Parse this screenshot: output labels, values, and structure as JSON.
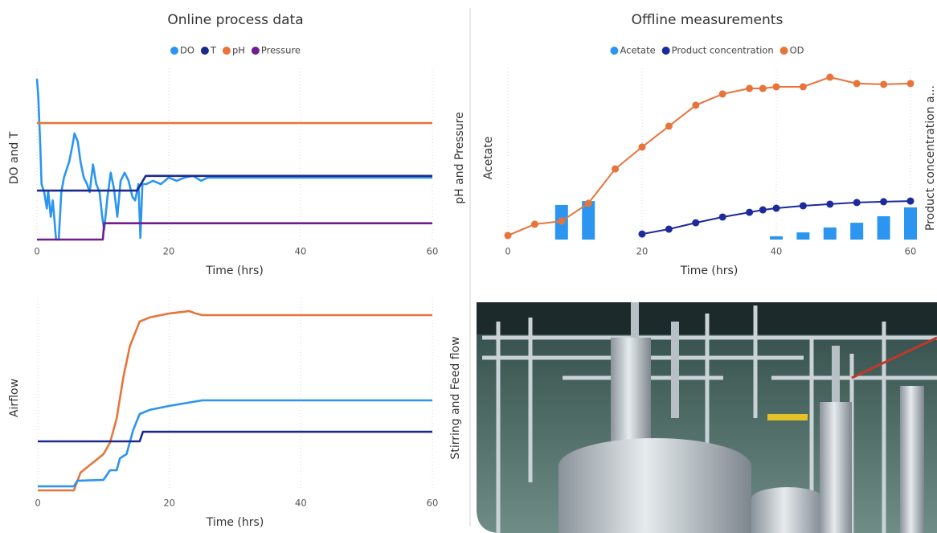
{
  "chart_data": [
    {
      "type": "line",
      "title": "Online process data",
      "xlabel": "Time (hrs)",
      "ylabel": "DO and T",
      "y2label": "pH and Pressure",
      "xlim": [
        0,
        60
      ],
      "xticks": [
        0,
        20,
        40,
        60
      ],
      "ylim": [
        0,
        100
      ],
      "y2lim": [
        0,
        100
      ],
      "grid": true,
      "legend": "top",
      "series": [
        {
          "name": "DO",
          "color": "#2b95f0",
          "axis": "y",
          "x": [
            0,
            0.2,
            0.5,
            0.7,
            1.1,
            1.5,
            1.7,
            2.1,
            2.4,
            2.9,
            3.3,
            3.7,
            4.1,
            4.9,
            5.4,
            5.7,
            6.2,
            6.6,
            7.1,
            7.6,
            8.0,
            8.5,
            9.0,
            9.5,
            9.9,
            10.2,
            10.7,
            11.2,
            11.7,
            12.2,
            12.7,
            13.3,
            13.9,
            14.5,
            14.9,
            15.4,
            15.7,
            16.0,
            16.6,
            17.6,
            18.8,
            20.0,
            21.2,
            22.4,
            23.7,
            24.9,
            25.9,
            60
          ],
          "values": [
            98.5,
            88,
            58,
            34,
            29,
            19,
            30,
            14,
            24,
            0,
            0,
            29,
            38,
            48,
            58,
            65,
            60,
            48,
            38,
            34,
            29,
            46,
            34,
            29,
            14,
            6,
            26,
            41,
            31,
            14,
            36,
            41,
            36,
            26,
            24,
            34,
            1,
            34,
            34,
            36,
            34,
            38,
            36,
            38,
            39,
            36,
            38,
            38
          ]
        },
        {
          "name": "T",
          "color": "#1c2a8c",
          "axis": "y",
          "x": [
            0,
            15.2,
            16.5,
            60
          ],
          "values": [
            30,
            30,
            39,
            39
          ]
        },
        {
          "name": "pH",
          "color": "#e8743b",
          "axis": "y2",
          "x": [
            0,
            60
          ],
          "values": [
            71.4,
            71.4
          ]
        },
        {
          "name": "Pressure",
          "color": "#6f1d8f",
          "axis": "y2",
          "x": [
            0,
            10,
            10.2,
            60
          ],
          "values": [
            0,
            0,
            10,
            10
          ]
        }
      ]
    },
    {
      "type": "combo",
      "title": "Offline measurements",
      "xlabel": "Time (hrs)",
      "ylabel": "Acetate",
      "y2label": "Product  concentration a...",
      "xlim": [
        0,
        60
      ],
      "xticks": [
        0,
        20,
        40,
        60
      ],
      "ylim": [
        0,
        100
      ],
      "y2lim": [
        0,
        100
      ],
      "grid": true,
      "legend": "top",
      "series": [
        {
          "name": "Acetate",
          "color": "#2b95f0",
          "type": "bar",
          "axis": "y",
          "x": [
            8,
            12,
            40,
            44,
            48,
            52,
            56,
            60
          ],
          "values": [
            21.2,
            23.6,
            2.0,
            4.4,
            7.4,
            10.3,
            14.3,
            19.7
          ]
        },
        {
          "name": "Product  concentration",
          "color": "#1c2a9c",
          "type": "line",
          "axis": "y2",
          "x": [
            20,
            24,
            28,
            32,
            36,
            38,
            40,
            44,
            48,
            52,
            56,
            60
          ],
          "values": [
            3.4,
            6.4,
            10.3,
            13.8,
            16.7,
            18.2,
            19.2,
            20.7,
            21.7,
            22.7,
            23.2,
            23.6
          ]
        },
        {
          "name": "OD",
          "color": "#e8743b",
          "type": "line",
          "axis": "y2",
          "x": [
            0,
            4,
            8,
            12,
            16,
            20,
            24,
            28,
            32,
            36,
            38,
            40,
            44,
            48,
            52,
            56,
            60
          ],
          "values": [
            2.5,
            9.4,
            11.3,
            22.2,
            43.3,
            56.7,
            69.5,
            82.3,
            89.2,
            92.6,
            92.6,
            93.6,
            93.6,
            99.5,
            95.6,
            95.1,
            95.6
          ]
        }
      ]
    },
    {
      "type": "line",
      "xlabel": "Time (hrs)",
      "ylabel": "Airflow",
      "y2label": "Stirring and Feed flow",
      "xlim": [
        0,
        60
      ],
      "xticks": [
        0,
        20,
        40,
        60
      ],
      "ylim": [
        0,
        100
      ],
      "y2lim": [
        0,
        100
      ],
      "grid": true,
      "series": [
        {
          "color": "#e8743b",
          "axis": "y",
          "x": [
            0,
            5.5,
            6.5,
            8,
            10,
            11,
            12,
            13,
            14,
            15.5,
            17,
            20,
            23,
            24,
            25,
            60
          ],
          "values": [
            0,
            0,
            9.6,
            13.9,
            19.6,
            26,
            39,
            61,
            78,
            91.3,
            93.5,
            95.7,
            97,
            95.7,
            94.8,
            94.8
          ]
        },
        {
          "color": "#2b95f0",
          "axis": "y2",
          "x": [
            0,
            5.5,
            6,
            10,
            11,
            12,
            12.5,
            13.5,
            14.5,
            15.5,
            17,
            20,
            25,
            60
          ],
          "values": [
            2.2,
            2.2,
            5.2,
            5.7,
            10.9,
            10.9,
            17.4,
            19.6,
            32.6,
            41.3,
            43.5,
            45.7,
            48.7,
            48.7
          ]
        },
        {
          "color": "#1c2a8c",
          "axis": "y2",
          "x": [
            0,
            15.5,
            16,
            60
          ],
          "values": [
            26.5,
            26.5,
            31.7,
            31.7
          ]
        }
      ]
    }
  ]
}
